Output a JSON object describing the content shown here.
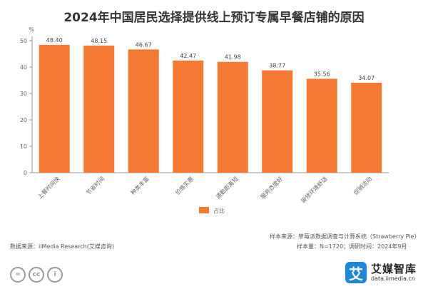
{
  "chart_data": {
    "type": "bar",
    "title": "2024年中国居民选择提供线上预订专属早餐店铺的原因",
    "ylabel": "%",
    "ylim": [
      0,
      50
    ],
    "yticks": [
      0,
      10,
      20,
      30,
      40,
      50
    ],
    "grid": false,
    "categories": [
      "上餐时间快",
      "节省时间",
      "种类丰富",
      "价格实惠",
      "通勤距离短",
      "服务态度好",
      "装修环境舒适",
      "促销活动"
    ],
    "series": [
      {
        "name": "占比",
        "color": "#f47a33",
        "values": [
          48.4,
          48.15,
          46.67,
          42.47,
          41.98,
          38.77,
          35.56,
          34.07
        ]
      }
    ],
    "value_labels": [
      "48.40",
      "48.15",
      "46.67",
      "42.47",
      "41.98",
      "38.77",
      "35.56",
      "34.07"
    ],
    "legend_position": "bottom"
  },
  "footer": {
    "sample_source": "样本来源：草莓派数据调查与计算系统（Strawberry Pie）",
    "sample_size": "样本量：N=1720；调研时间：2024年9月",
    "data_source": "数据来源：iiMedia Research(艾媒咨询)"
  },
  "license_icons": [
    "=",
    "cc",
    "i"
  ],
  "brand": {
    "logo_char": "艾",
    "name": "艾媒智库",
    "url": "data.iimedia.cn",
    "color": "#1e88d8"
  }
}
